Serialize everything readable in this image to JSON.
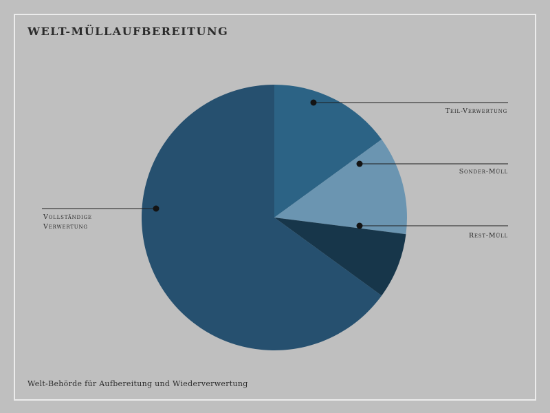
{
  "title": "WELT-MÜLLAUFBEREITUNG",
  "footer": "Welt-Behörde für Aufbereitung und Wiederverwertung",
  "chart_data": {
    "type": "pie",
    "title": "WELT-MÜLLAUFBEREITUNG",
    "slices": [
      {
        "label": "Teil-Verwertung",
        "value": 15,
        "color": "#2c6385"
      },
      {
        "label": "Sonder-Müll",
        "value": 12,
        "color": "#6b95b1"
      },
      {
        "label": "Rest-Müll",
        "value": 8,
        "color": "#17364a"
      },
      {
        "label": "Vollständige Verwertung",
        "value": 65,
        "color": "#26506f"
      }
    ],
    "start": "12 o'clock",
    "direction": "clockwise"
  }
}
